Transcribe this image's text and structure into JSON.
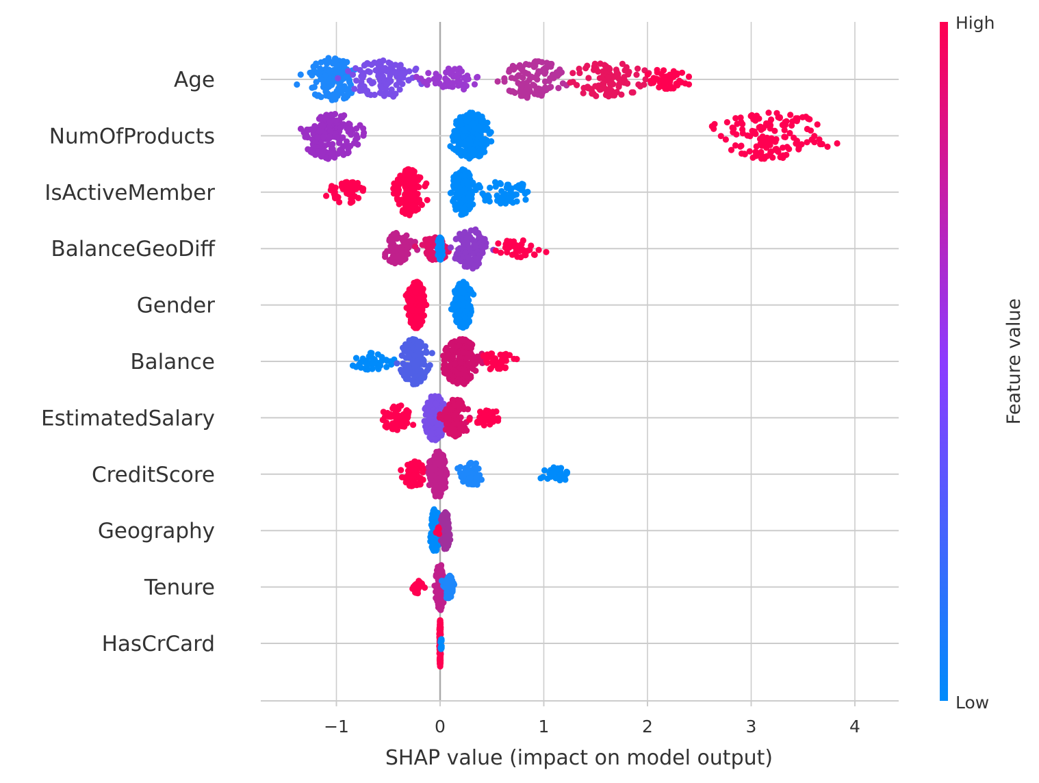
{
  "chart_data": {
    "type": "scatter",
    "subtype": "shap-beeswarm",
    "xlabel": "SHAP value (impact on model output)",
    "xlim": [
      -1.75,
      4.45
    ],
    "xticks": [
      {
        "value": -1,
        "label": "−1"
      },
      {
        "value": 0,
        "label": "0"
      },
      {
        "value": 1,
        "label": "1"
      },
      {
        "value": 2,
        "label": "2"
      },
      {
        "value": 3,
        "label": "3"
      },
      {
        "value": 4,
        "label": "4"
      }
    ],
    "grid": true,
    "colorbar": {
      "title": "Feature value",
      "high_label": "High",
      "low_label": "Low",
      "colors": [
        "#008bfb",
        "#8c3bff",
        "#ff0051"
      ]
    },
    "features": [
      {
        "name": "Age",
        "x_range": [
          -1.48,
          2.4
        ],
        "clusters": [
          {
            "center": -1.05,
            "spread": 0.25,
            "count": 130,
            "color": "#1e88fb"
          },
          {
            "center": -0.55,
            "spread": 0.3,
            "count": 110,
            "color": "#7a4fe8"
          },
          {
            "center": 0.1,
            "spread": 0.25,
            "count": 60,
            "color": "#9b3ad0"
          },
          {
            "center": 0.9,
            "spread": 0.3,
            "count": 110,
            "color": "#b6329c"
          },
          {
            "center": 1.6,
            "spread": 0.35,
            "count": 100,
            "color": "#e8155f"
          },
          {
            "center": 2.15,
            "spread": 0.2,
            "count": 50,
            "color": "#ff0051"
          }
        ]
      },
      {
        "name": "NumOfProducts",
        "x_range": [
          -1.4,
          4.15
        ],
        "clusters": [
          {
            "center": -1.05,
            "spread": 0.25,
            "count": 170,
            "color": "#9b2fc4"
          },
          {
            "center": 0.3,
            "spread": 0.17,
            "count": 230,
            "color": "#008bfb"
          },
          {
            "center": 3.2,
            "spread": 0.55,
            "count": 140,
            "color": "#ff0051"
          }
        ]
      },
      {
        "name": "IsActiveMember",
        "x_range": [
          -1.1,
          1.0
        ],
        "clusters": [
          {
            "center": -0.9,
            "spread": 0.15,
            "count": 60,
            "color": "#ff0051"
          },
          {
            "center": -0.3,
            "spread": 0.12,
            "count": 160,
            "color": "#ff0051"
          },
          {
            "center": 0.22,
            "spread": 0.1,
            "count": 170,
            "color": "#008bfb"
          },
          {
            "center": 0.6,
            "spread": 0.25,
            "count": 60,
            "color": "#008bfb"
          }
        ]
      },
      {
        "name": "BalanceGeoDiff",
        "x_range": [
          -0.55,
          1.15
        ],
        "clusters": [
          {
            "center": -0.4,
            "spread": 0.12,
            "count": 90,
            "color": "#c0208c"
          },
          {
            "center": -0.05,
            "spread": 0.12,
            "count": 60,
            "color": "#e0106a"
          },
          {
            "center": 0.0,
            "spread": 0.02,
            "count": 60,
            "color": "#008bfb"
          },
          {
            "center": 0.3,
            "spread": 0.15,
            "count": 120,
            "color": "#8d3cc9"
          },
          {
            "center": 0.75,
            "spread": 0.2,
            "count": 40,
            "color": "#ff0051"
          }
        ]
      },
      {
        "name": "Gender",
        "x_range": [
          -0.42,
          0.45
        ],
        "clusters": [
          {
            "center": -0.23,
            "spread": 0.08,
            "count": 260,
            "color": "#ff0051"
          },
          {
            "center": 0.22,
            "spread": 0.08,
            "count": 260,
            "color": "#008bfb"
          }
        ]
      },
      {
        "name": "Balance",
        "x_range": [
          -0.85,
          0.82
        ],
        "clusters": [
          {
            "center": -0.65,
            "spread": 0.15,
            "count": 40,
            "color": "#008bfb"
          },
          {
            "center": -0.25,
            "spread": 0.12,
            "count": 160,
            "color": "#5060e6"
          },
          {
            "center": 0.2,
            "spread": 0.15,
            "count": 200,
            "color": "#d0106f"
          },
          {
            "center": 0.55,
            "spread": 0.15,
            "count": 40,
            "color": "#ff0051"
          }
        ]
      },
      {
        "name": "EstimatedSalary",
        "x_range": [
          -0.65,
          0.65
        ],
        "clusters": [
          {
            "center": -0.4,
            "spread": 0.15,
            "count": 70,
            "color": "#ff0051"
          },
          {
            "center": -0.05,
            "spread": 0.1,
            "count": 170,
            "color": "#7a4fe8"
          },
          {
            "center": 0.15,
            "spread": 0.12,
            "count": 110,
            "color": "#d8106a"
          },
          {
            "center": 0.45,
            "spread": 0.12,
            "count": 40,
            "color": "#ff0051"
          }
        ]
      },
      {
        "name": "CreditScore",
        "x_range": [
          -0.38,
          1.38
        ],
        "clusters": [
          {
            "center": -0.25,
            "spread": 0.1,
            "count": 70,
            "color": "#ff0051"
          },
          {
            "center": -0.02,
            "spread": 0.08,
            "count": 180,
            "color": "#c0208c"
          },
          {
            "center": 0.3,
            "spread": 0.12,
            "count": 60,
            "color": "#1e88fb"
          },
          {
            "center": 1.1,
            "spread": 0.15,
            "count": 30,
            "color": "#008bfb"
          }
        ]
      },
      {
        "name": "Geography",
        "x_range": [
          -0.15,
          0.14
        ],
        "clusters": [
          {
            "center": -0.05,
            "spread": 0.04,
            "count": 130,
            "color": "#008bfb"
          },
          {
            "center": 0.05,
            "spread": 0.04,
            "count": 110,
            "color": "#a0309c"
          },
          {
            "center": -0.02,
            "spread": 0.02,
            "count": 10,
            "color": "#ff0051"
          }
        ]
      },
      {
        "name": "Tenure",
        "x_range": [
          -0.3,
          0.18
        ],
        "clusters": [
          {
            "center": -0.22,
            "spread": 0.05,
            "count": 25,
            "color": "#ff0051"
          },
          {
            "center": 0.0,
            "spread": 0.04,
            "count": 140,
            "color": "#c0208c"
          },
          {
            "center": 0.08,
            "spread": 0.06,
            "count": 60,
            "color": "#1e88fb"
          }
        ]
      },
      {
        "name": "HasCrCard",
        "x_range": [
          -0.02,
          0.03
        ],
        "clusters": [
          {
            "center": 0.0,
            "spread": 0.006,
            "count": 160,
            "color": "#ff0051"
          },
          {
            "center": 0.01,
            "spread": 0.006,
            "count": 20,
            "color": "#008bfb"
          }
        ]
      }
    ]
  }
}
